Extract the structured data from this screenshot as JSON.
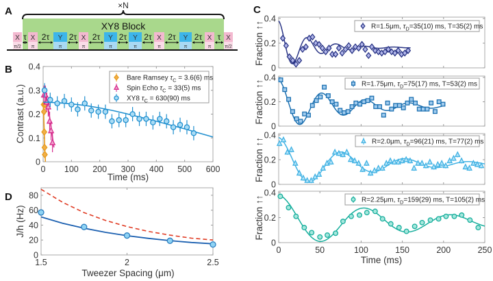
{
  "panel_labels": {
    "a": "A",
    "b": "B",
    "c": "C",
    "d": "D"
  },
  "panel_a": {
    "repeat_label": "×N",
    "block_label": "XY8 Block",
    "pulses": [
      {
        "axis": "X",
        "angle": "π/2"
      },
      {
        "axis": "X",
        "angle": "π"
      },
      {
        "axis": "Y",
        "angle": "π"
      },
      {
        "axis": "X",
        "angle": "π"
      },
      {
        "axis": "Y",
        "angle": "π"
      },
      {
        "axis": "Y",
        "angle": "π"
      },
      {
        "axis": "X",
        "angle": "π"
      },
      {
        "axis": "Y",
        "angle": "π"
      },
      {
        "axis": "X",
        "angle": "π"
      },
      {
        "axis": "X",
        "angle": "π/2"
      }
    ],
    "spacings": [
      "τ",
      "2τ",
      "2τ",
      "2τ",
      "2τ",
      "2τ",
      "2τ",
      "2τ",
      "τ"
    ],
    "colors": {
      "block": "#a9d88c",
      "x_top": "#f3b9d0",
      "x_bottom": "#fadbe7",
      "y_top": "#3cb5ea",
      "y_bottom": "#a8d9f3"
    }
  },
  "chart_data": [
    {
      "id": "B",
      "type": "scatter",
      "xlabel": "Time (ms)",
      "ylabel": "Contrast (a.u.)",
      "xlim": [
        0,
        600
      ],
      "ylim": [
        0,
        0.4
      ],
      "xticks": [
        0,
        100,
        200,
        300,
        400,
        500,
        600
      ],
      "yticks": [
        0,
        0.1,
        0.2,
        0.3,
        0.4
      ],
      "legend_position": "top-right",
      "series": [
        {
          "name": "Bare Ramsey",
          "legend": {
            "prefix": "Bare Ramsey ",
            "sym": "τ",
            "sub": "C",
            "suffix": " = 3.6(6) ms"
          },
          "marker": "diamond",
          "color": "#e89a1c",
          "fill": "#f0b04a",
          "x": [
            2,
            3,
            4,
            5,
            6,
            7
          ],
          "y": [
            0.24,
            0.21,
            0.125,
            0.06,
            0.03,
            0.24
          ],
          "err": 0.015,
          "fit": {
            "x": [
              0,
              2,
              4,
              6,
              8
            ],
            "y": [
              0.25,
              0.2,
              0.12,
              0.05,
              0.0
            ]
          }
        },
        {
          "name": "Spin Echo",
          "legend": {
            "prefix": "Spin Echo ",
            "sym": "τ",
            "sub": "C",
            "suffix": " = 33(5) ms"
          },
          "marker": "triangle",
          "color": "#d62a8c",
          "fill": "#f2a6cf",
          "x": [
            3,
            8,
            13,
            18,
            23,
            28,
            33
          ],
          "y": [
            0.28,
            0.28,
            0.25,
            0.23,
            0.17,
            0.13,
            0.08
          ],
          "err": 0.04,
          "fit": {
            "x": [
              0,
              10,
              20,
              30,
              38
            ],
            "y": [
              0.3,
              0.27,
              0.21,
              0.13,
              0.06
            ]
          }
        },
        {
          "name": "XY8",
          "legend": {
            "prefix": "XY8 ",
            "sym": "τ",
            "sub": "C",
            "suffix": " = 630(90) ms"
          },
          "marker": "circle",
          "color": "#1f8fcf",
          "fill": "#aadcf5",
          "x": [
            5,
            25,
            50,
            75,
            100,
            122,
            147,
            170,
            195,
            220,
            243,
            268,
            292,
            316,
            340,
            364,
            388,
            412,
            436,
            460,
            484,
            508,
            532
          ],
          "y": [
            0.3,
            0.26,
            0.245,
            0.255,
            0.24,
            0.22,
            0.245,
            0.215,
            0.21,
            0.21,
            0.17,
            0.175,
            0.175,
            0.2,
            0.18,
            0.18,
            0.165,
            0.18,
            0.17,
            0.145,
            0.155,
            0.145,
            0.12
          ],
          "err": 0.03,
          "fit": {
            "x": [
              0,
              50,
              100,
              150,
              200,
              250,
              300,
              350,
              400,
              450,
              500,
              550,
              600
            ],
            "y": [
              0.25,
              0.248,
              0.243,
              0.236,
              0.226,
              0.214,
              0.2,
              0.185,
              0.17,
              0.154,
              0.138,
              0.121,
              0.104
            ]
          }
        }
      ]
    },
    {
      "id": "C",
      "type": "scatter",
      "xlabel": "Time (ms)",
      "ylabel": "Fraction ↑↑",
      "xlim": [
        0,
        250
      ],
      "ylim": [
        0,
        0.4
      ],
      "xticks": [
        0,
        50,
        100,
        150,
        200,
        250
      ],
      "yticks": [
        0,
        0.2,
        0.4
      ],
      "legend_position": "top-right",
      "subplots": [
        {
          "legend": {
            "prefix": "R=1.5μm, ",
            "sym": "τ",
            "sub": "D",
            "suffix": "=35(10) ms, T=35(2) ms"
          },
          "marker": "diamond",
          "color": "#2a3585",
          "fill": "#b2b7ea",
          "err": 0.015,
          "tau_d": 35,
          "period": 35,
          "fit_end": 160,
          "x": [
            5,
            9,
            13,
            17,
            21,
            25,
            29,
            33,
            37,
            41,
            45,
            49,
            53,
            57,
            61,
            65,
            69,
            73,
            77,
            81,
            85,
            89,
            93,
            97,
            101,
            105,
            109,
            113,
            117,
            121,
            125,
            129,
            133,
            137,
            141,
            145,
            149,
            153,
            157
          ],
          "y": [
            0.24,
            0.18,
            0.09,
            0.06,
            0.03,
            0.06,
            0.15,
            0.17,
            0.24,
            0.25,
            0.2,
            0.19,
            0.16,
            0.13,
            0.16,
            0.11,
            0.11,
            0.16,
            0.12,
            0.15,
            0.18,
            0.14,
            0.17,
            0.16,
            0.19,
            0.15,
            0.1,
            0.17,
            0.14,
            0.13,
            0.12,
            0.13,
            0.15,
            0.13,
            0.12,
            0.14,
            0.11,
            0.12,
            0.14
          ]
        },
        {
          "legend": {
            "prefix": "R=1.75μm, ",
            "sym": "τ",
            "sub": "D",
            "suffix": "=75(17) ms, T=53(2) ms"
          },
          "marker": "square",
          "color": "#1a6fb0",
          "fill": "#a0cbee",
          "err": 0.015,
          "tau_d": 75,
          "period": 53,
          "fit_end": 200,
          "x": [
            2.5,
            7.3,
            12.1,
            16.9,
            21.7,
            26.5,
            31.3,
            36.1,
            40.9,
            45.7,
            50.5,
            55.3,
            60.1,
            64.9,
            69.7,
            74.5,
            79.3,
            84.1,
            88.9,
            93.7,
            98.5,
            103.3,
            108.1,
            112.9,
            117.7,
            122.5,
            127.3,
            132.1,
            136.9,
            141.7,
            146.5,
            151.3,
            156.1,
            160.9,
            165.7,
            170.5,
            175.3,
            180.1,
            184.9,
            189.7,
            194.5,
            199.3
          ],
          "y": [
            0.38,
            0.3,
            0.22,
            0.12,
            0.06,
            0.04,
            0.1,
            0.09,
            0.17,
            0.21,
            0.24,
            0.32,
            0.25,
            0.2,
            0.18,
            0.13,
            0.11,
            0.12,
            0.16,
            0.19,
            0.18,
            0.2,
            0.21,
            0.23,
            0.16,
            0.16,
            0.09,
            0.19,
            0.14,
            0.17,
            0.17,
            0.15,
            0.19,
            0.22,
            0.19,
            0.14,
            0.14,
            0.14,
            0.19,
            0.12,
            0.2,
            0.18
          ]
        },
        {
          "legend": {
            "prefix": "R=2.0μm, ",
            "sym": "τ",
            "sub": "D",
            "suffix": "=96(21) ms, T=77(2) ms"
          },
          "marker": "triangle",
          "color": "#3fb1e3",
          "fill": "#b6e4f8",
          "err": 0.02,
          "tau_d": 96,
          "period": 77,
          "fit_end": 250,
          "x": [
            1,
            5.8,
            10.6,
            15.4,
            20.2,
            25,
            29.8,
            34.6,
            39.4,
            44.2,
            49,
            53.8,
            58.6,
            63.4,
            68.2,
            73,
            77.8,
            82.6,
            87.4,
            92.2,
            97,
            101.8,
            106.6,
            111.4,
            116.2,
            121,
            125.8,
            130.6,
            135.4,
            140.2,
            145,
            149.8,
            154.6,
            159.4,
            164.2,
            169,
            173.8,
            178.6,
            183.4,
            188.2,
            193,
            197.8,
            202.6,
            207.4,
            212.2,
            217,
            221.8,
            226.6,
            231.4,
            236.2,
            241,
            245.8
          ],
          "y": [
            0.33,
            0.36,
            0.26,
            0.28,
            0.17,
            0.09,
            0.05,
            0.03,
            0.03,
            0.06,
            0.08,
            0.13,
            0.17,
            0.18,
            0.26,
            0.25,
            0.24,
            0.26,
            0.2,
            0.19,
            0.17,
            0.12,
            0.17,
            0.09,
            0.11,
            0.13,
            0.13,
            0.17,
            0.19,
            0.18,
            0.18,
            0.19,
            0.2,
            0.19,
            0.13,
            0.17,
            0.17,
            0.15,
            0.18,
            0.14,
            0.16,
            0.17,
            0.15,
            0.19,
            0.21,
            0.24,
            0.19,
            0.14,
            0.13,
            0.17,
            0.16,
            0.15
          ]
        },
        {
          "legend": {
            "prefix": "R=2.25μm, ",
            "sym": "τ",
            "sub": "D",
            "suffix": "=159(29) ms, T=105(2) ms"
          },
          "marker": "circle",
          "color": "#16ae9c",
          "fill": "#a6e7dd",
          "err": 0.015,
          "tau_d": 159,
          "period": 105,
          "fit_end": 250,
          "x": [
            2,
            12,
            21,
            31,
            40,
            50,
            59,
            69,
            78,
            88,
            98,
            107,
            117,
            126,
            136,
            146,
            155,
            165,
            174,
            184,
            194,
            203,
            213,
            222,
            232,
            242
          ],
          "y": [
            0.37,
            0.28,
            0.21,
            0.12,
            0.08,
            0.045,
            0.06,
            0.075,
            0.17,
            0.21,
            0.22,
            0.24,
            0.25,
            0.19,
            0.15,
            0.12,
            0.09,
            0.13,
            0.16,
            0.18,
            0.19,
            0.21,
            0.21,
            0.22,
            0.18,
            0.12
          ]
        }
      ]
    },
    {
      "id": "D",
      "type": "line",
      "xlabel": "Tweezer Spacing (μm)",
      "ylabel": "J/h (Hz)",
      "xlim": [
        1.5,
        2.5
      ],
      "ylim": [
        0,
        90
      ],
      "xticks": [
        1.5,
        2,
        2.5
      ],
      "yticks": [
        0,
        20,
        40,
        60,
        80
      ],
      "points": {
        "x": [
          1.5,
          1.75,
          2,
          2.25,
          2.5
        ],
        "y": [
          57,
          37.5,
          26,
          19,
          14
        ],
        "color": "#2a7ec0",
        "fill": "#8fd3f4"
      },
      "solid_curve": {
        "x": [
          1.5,
          1.625,
          1.75,
          1.875,
          2,
          2.125,
          2.25,
          2.375,
          2.5
        ],
        "y": [
          51,
          42.5,
          35.8,
          30.3,
          25.8,
          22.2,
          19.2,
          16.7,
          15
        ],
        "color": "#1a5fb0"
      },
      "dashed_curve": {
        "x": [
          1.5,
          1.625,
          1.75,
          1.875,
          2,
          2.125,
          2.25,
          2.375,
          2.5
        ],
        "y": [
          88,
          70.5,
          56.8,
          46.3,
          38,
          31.5,
          26.5,
          22.5,
          20
        ],
        "color": "#e03a22"
      }
    }
  ]
}
